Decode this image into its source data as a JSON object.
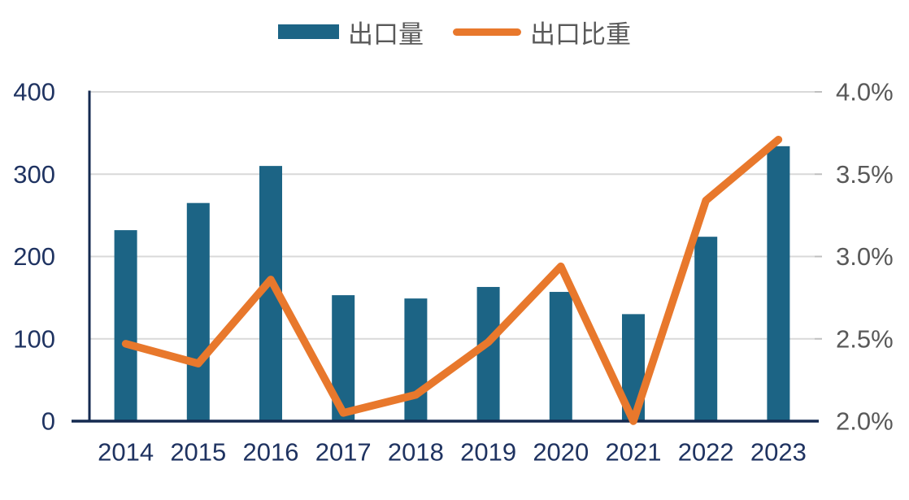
{
  "colors": {
    "background": "#FFFFFF",
    "bar": "#1C6485",
    "line": "#E8782C",
    "axis": "#142A50",
    "axis_label": "#1F3361",
    "secondary_label": "#595959",
    "legend_text": "#595959",
    "gridline": "#D9D9D9",
    "right_tick": "#BFBFBF"
  },
  "legend": {
    "items": [
      {
        "label": "出口量",
        "swatch": "bar",
        "color": "#1C6485"
      },
      {
        "label": "出口比重",
        "swatch": "line",
        "color": "#E8782C"
      }
    ]
  },
  "chart_data": {
    "type": "combo-bar-line",
    "categories": [
      "2014",
      "2015",
      "2016",
      "2017",
      "2018",
      "2019",
      "2020",
      "2021",
      "2022",
      "2023"
    ],
    "series": [
      {
        "name": "出口量",
        "type": "bar",
        "axis": "left",
        "values": [
          232,
          265,
          310,
          153,
          149,
          163,
          157,
          130,
          224,
          334
        ]
      },
      {
        "name": "出口比重",
        "type": "line",
        "axis": "right",
        "unit": "%",
        "values": [
          2.47,
          2.35,
          2.86,
          2.05,
          2.16,
          2.48,
          2.94,
          2.0,
          3.34,
          3.71
        ]
      }
    ],
    "left_axis": {
      "min": 0,
      "max": 400,
      "tick_values": [
        0,
        100,
        200,
        300,
        400
      ],
      "tick_labels": [
        "0",
        "100",
        "200",
        "300",
        "400"
      ]
    },
    "right_axis": {
      "min": 2.0,
      "max": 4.0,
      "tick_values": [
        2.0,
        2.5,
        3.0,
        3.5,
        4.0
      ],
      "tick_labels": [
        "2.0%",
        "2.5%",
        "3.0%",
        "3.5%",
        "4.0%"
      ]
    },
    "grid": true,
    "legend_position": "top",
    "title": ""
  }
}
